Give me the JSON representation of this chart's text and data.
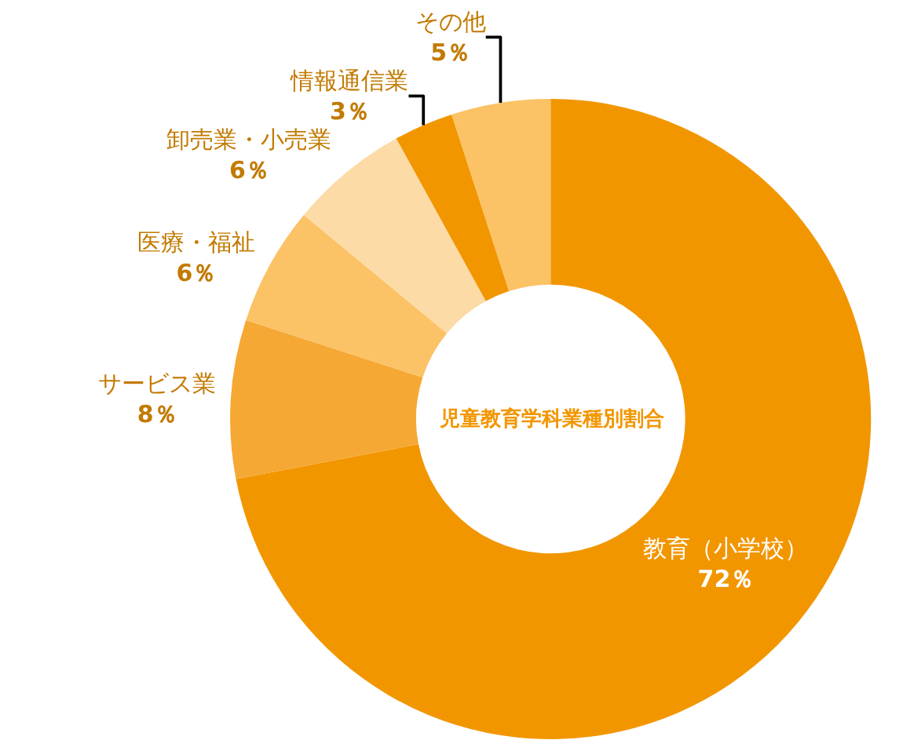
{
  "chart_data": {
    "type": "donut",
    "title": "児童教育学科業種別割合",
    "categories": [
      "教育（小学校）",
      "サービス業",
      "医療・福祉",
      "卸売業・小売業",
      "情報通信業",
      "その他"
    ],
    "values": [
      72,
      8,
      6,
      6,
      3,
      5
    ],
    "value_labels": [
      "72％",
      "8％",
      "6％",
      "6％",
      "3％",
      "5％"
    ],
    "colors": [
      "#f29600",
      "#f5a833",
      "#fbc266",
      "#fcdba6",
      "#f29600",
      "#fbc266"
    ],
    "legend": false
  }
}
